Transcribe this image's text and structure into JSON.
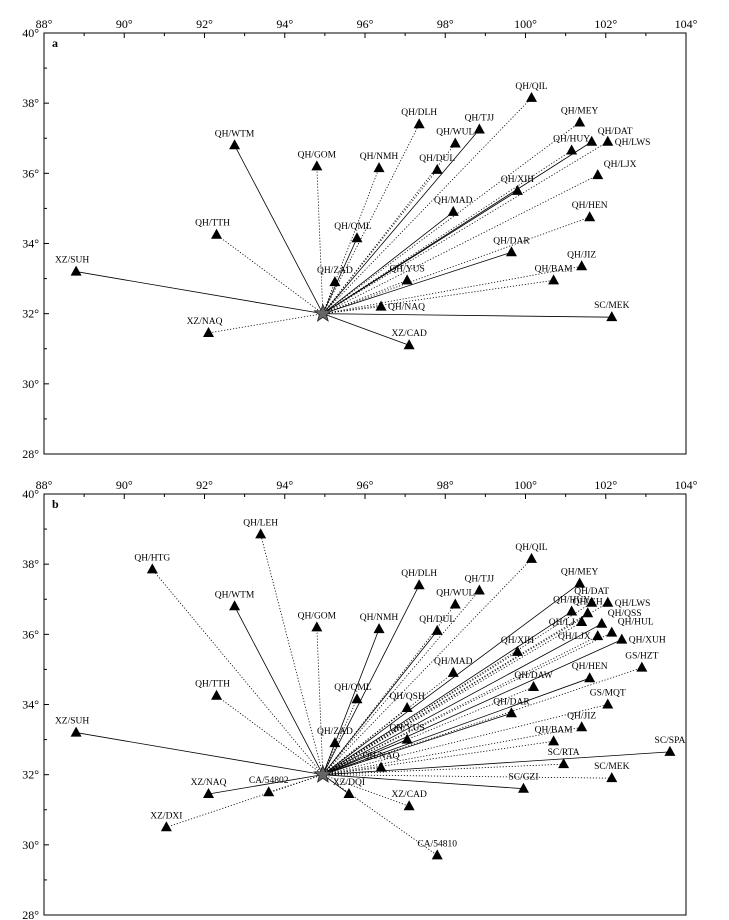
{
  "chart_data": [
    {
      "type": "scatter",
      "panel_label": "a",
      "xlabel": "",
      "ylabel": "",
      "xlim": [
        88,
        104
      ],
      "ylim": [
        28,
        40
      ],
      "x_ticks": [
        "88°",
        "90°",
        "92°",
        "94°",
        "96°",
        "98°",
        "100°",
        "102°",
        "104°"
      ],
      "y_ticks": [
        "28°",
        "30°",
        "32°",
        "34°",
        "36°",
        "38°",
        "40°"
      ],
      "grid": false,
      "epicenter": {
        "lon": 94.95,
        "lat": 32.0
      },
      "stations": [
        {
          "name": "XZ/SUH",
          "lon": 88.8,
          "lat": 33.2,
          "pos": "tl"
        },
        {
          "name": "QH/TTH",
          "lon": 92.3,
          "lat": 34.25,
          "pos": "tl"
        },
        {
          "name": "XZ/NAQ",
          "lon": 92.1,
          "lat": 31.45,
          "pos": "tl"
        },
        {
          "name": "QH/WTM",
          "lon": 92.75,
          "lat": 36.8,
          "pos": "t"
        },
        {
          "name": "QH/GOM",
          "lon": 94.8,
          "lat": 36.2,
          "pos": "t"
        },
        {
          "name": "QH/NMH",
          "lon": 96.35,
          "lat": 36.15,
          "pos": "t"
        },
        {
          "name": "QH/QML",
          "lon": 95.8,
          "lat": 34.15,
          "pos": "tl"
        },
        {
          "name": "QH/ZAD",
          "lon": 95.25,
          "lat": 32.9,
          "pos": "t"
        },
        {
          "name": "QH/DLH",
          "lon": 97.35,
          "lat": 37.4,
          "pos": "t"
        },
        {
          "name": "QH/TJJ",
          "lon": 98.85,
          "lat": 37.25,
          "pos": "t"
        },
        {
          "name": "QH/WUL",
          "lon": 98.25,
          "lat": 36.85,
          "pos": "t"
        },
        {
          "name": "QH/DUL",
          "lon": 97.8,
          "lat": 36.1,
          "pos": "t"
        },
        {
          "name": "QH/MAD",
          "lon": 98.2,
          "lat": 34.9,
          "pos": "t"
        },
        {
          "name": "QH/YUS",
          "lon": 97.05,
          "lat": 32.95,
          "pos": "t"
        },
        {
          "name": "QH/NAQ",
          "lon": 96.4,
          "lat": 32.2,
          "pos": "r"
        },
        {
          "name": "XZ/CAD",
          "lon": 97.1,
          "lat": 31.1,
          "pos": "t"
        },
        {
          "name": "QH/QIL",
          "lon": 100.15,
          "lat": 38.15,
          "pos": "t"
        },
        {
          "name": "QH/MEY",
          "lon": 101.35,
          "lat": 37.45,
          "pos": "t"
        },
        {
          "name": "QH/DAT",
          "lon": 101.65,
          "lat": 36.9,
          "pos": "tr"
        },
        {
          "name": "QH/LWS",
          "lon": 102.05,
          "lat": 36.9,
          "pos": "r"
        },
        {
          "name": "QH/HUY",
          "lon": 101.15,
          "lat": 36.65,
          "pos": "t"
        },
        {
          "name": "QH/XIH",
          "lon": 99.8,
          "lat": 35.5,
          "pos": "t"
        },
        {
          "name": "QH/LJX",
          "lon": 101.8,
          "lat": 35.95,
          "pos": "tr"
        },
        {
          "name": "QH/HEN",
          "lon": 101.6,
          "lat": 34.75,
          "pos": "t"
        },
        {
          "name": "QH/DAR",
          "lon": 99.65,
          "lat": 33.75,
          "pos": "t"
        },
        {
          "name": "QH/JIZ",
          "lon": 101.4,
          "lat": 33.35,
          "pos": "t"
        },
        {
          "name": "QH/BAM",
          "lon": 100.7,
          "lat": 32.95,
          "pos": "t"
        },
        {
          "name": "SC/MEK",
          "lon": 102.15,
          "lat": 31.9,
          "pos": "t"
        }
      ]
    },
    {
      "type": "scatter",
      "panel_label": "b",
      "xlabel": "",
      "ylabel": "",
      "xlim": [
        88,
        104
      ],
      "ylim": [
        28,
        40
      ],
      "x_ticks": [
        "88°",
        "90°",
        "92°",
        "94°",
        "96°",
        "98°",
        "100°",
        "102°",
        "104°"
      ],
      "y_ticks": [
        "28°",
        "30°",
        "32°",
        "34°",
        "36°",
        "38°",
        "40°"
      ],
      "grid": false,
      "epicenter": {
        "lon": 94.95,
        "lat": 32.0
      },
      "stations": [
        {
          "name": "XZ/SUH",
          "lon": 88.8,
          "lat": 33.2,
          "pos": "tl"
        },
        {
          "name": "QH/HTG",
          "lon": 90.7,
          "lat": 37.85,
          "pos": "t"
        },
        {
          "name": "QH/LEH",
          "lon": 93.4,
          "lat": 38.85,
          "pos": "t"
        },
        {
          "name": "QH/WTM",
          "lon": 92.75,
          "lat": 36.8,
          "pos": "t"
        },
        {
          "name": "QH/GOM",
          "lon": 94.8,
          "lat": 36.2,
          "pos": "t"
        },
        {
          "name": "QH/TTH",
          "lon": 92.3,
          "lat": 34.25,
          "pos": "tl"
        },
        {
          "name": "XZ/NAQ",
          "lon": 92.1,
          "lat": 31.45,
          "pos": "t"
        },
        {
          "name": "CA/54802",
          "lon": 93.6,
          "lat": 31.5,
          "pos": "t"
        },
        {
          "name": "XZ/DXI",
          "lon": 91.05,
          "lat": 30.5,
          "pos": "t"
        },
        {
          "name": "XZ/DQI",
          "lon": 95.6,
          "lat": 31.45,
          "pos": "t"
        },
        {
          "name": "XZ/CAD",
          "lon": 97.1,
          "lat": 31.1,
          "pos": "t"
        },
        {
          "name": "CA/54810",
          "lon": 97.8,
          "lat": 29.7,
          "pos": "t"
        },
        {
          "name": "QH/NMH",
          "lon": 96.35,
          "lat": 36.15,
          "pos": "t"
        },
        {
          "name": "QH/QML",
          "lon": 95.8,
          "lat": 34.15,
          "pos": "tl"
        },
        {
          "name": "QH/ZAD",
          "lon": 95.25,
          "lat": 32.9,
          "pos": "t"
        },
        {
          "name": "QH/DLH",
          "lon": 97.35,
          "lat": 37.4,
          "pos": "t"
        },
        {
          "name": "QH/TJJ",
          "lon": 98.85,
          "lat": 37.25,
          "pos": "t"
        },
        {
          "name": "QH/WUL",
          "lon": 98.25,
          "lat": 36.85,
          "pos": "t"
        },
        {
          "name": "QH/DUL",
          "lon": 97.8,
          "lat": 36.1,
          "pos": "t"
        },
        {
          "name": "QH/MAD",
          "lon": 98.2,
          "lat": 34.9,
          "pos": "t"
        },
        {
          "name": "QH/QSH",
          "lon": 97.05,
          "lat": 33.9,
          "pos": "t"
        },
        {
          "name": "QH/YUS",
          "lon": 97.05,
          "lat": 33.0,
          "pos": "t"
        },
        {
          "name": "QH/NAQ",
          "lon": 96.4,
          "lat": 32.2,
          "pos": "t"
        },
        {
          "name": "QH/QIL",
          "lon": 100.15,
          "lat": 38.15,
          "pos": "t"
        },
        {
          "name": "QH/MEY",
          "lon": 101.35,
          "lat": 37.45,
          "pos": "t"
        },
        {
          "name": "QH/DAT",
          "lon": 101.65,
          "lat": 36.9,
          "pos": "t"
        },
        {
          "name": "QH/LWS",
          "lon": 102.05,
          "lat": 36.9,
          "pos": "r"
        },
        {
          "name": "QH/HUY",
          "lon": 101.15,
          "lat": 36.65,
          "pos": "t"
        },
        {
          "name": "QH/GH",
          "lon": 101.55,
          "lat": 36.6,
          "pos": "t"
        },
        {
          "name": "QH/LJ",
          "lon": 101.4,
          "lat": 36.35,
          "pos": "l"
        },
        {
          "name": "QH/QSS",
          "lon": 101.9,
          "lat": 36.3,
          "pos": "tr"
        },
        {
          "name": "QH/HUL",
          "lon": 102.15,
          "lat": 36.05,
          "pos": "tr"
        },
        {
          "name": "QH/LJX",
          "lon": 101.8,
          "lat": 35.95,
          "pos": "l"
        },
        {
          "name": "QH/XUH",
          "lon": 102.4,
          "lat": 35.85,
          "pos": "r"
        },
        {
          "name": "QH/XIH",
          "lon": 99.8,
          "lat": 35.5,
          "pos": "t"
        },
        {
          "name": "GS/HZT",
          "lon": 102.9,
          "lat": 35.05,
          "pos": "t"
        },
        {
          "name": "QH/HEN",
          "lon": 101.6,
          "lat": 34.75,
          "pos": "t"
        },
        {
          "name": "QH/DAW",
          "lon": 100.2,
          "lat": 34.5,
          "pos": "t"
        },
        {
          "name": "GS/MQT",
          "lon": 102.05,
          "lat": 34.0,
          "pos": "t"
        },
        {
          "name": "QH/DAR",
          "lon": 99.65,
          "lat": 33.75,
          "pos": "t"
        },
        {
          "name": "QH/JIZ",
          "lon": 101.4,
          "lat": 33.35,
          "pos": "t"
        },
        {
          "name": "QH/BAM",
          "lon": 100.7,
          "lat": 32.95,
          "pos": "t"
        },
        {
          "name": "SC/SPA",
          "lon": 103.6,
          "lat": 32.65,
          "pos": "t"
        },
        {
          "name": "SC/RTA",
          "lon": 100.95,
          "lat": 32.3,
          "pos": "t"
        },
        {
          "name": "SC/MEK",
          "lon": 102.15,
          "lat": 31.9,
          "pos": "t"
        },
        {
          "name": "SC/GZI",
          "lon": 99.95,
          "lat": 31.6,
          "pos": "t"
        }
      ]
    }
  ]
}
